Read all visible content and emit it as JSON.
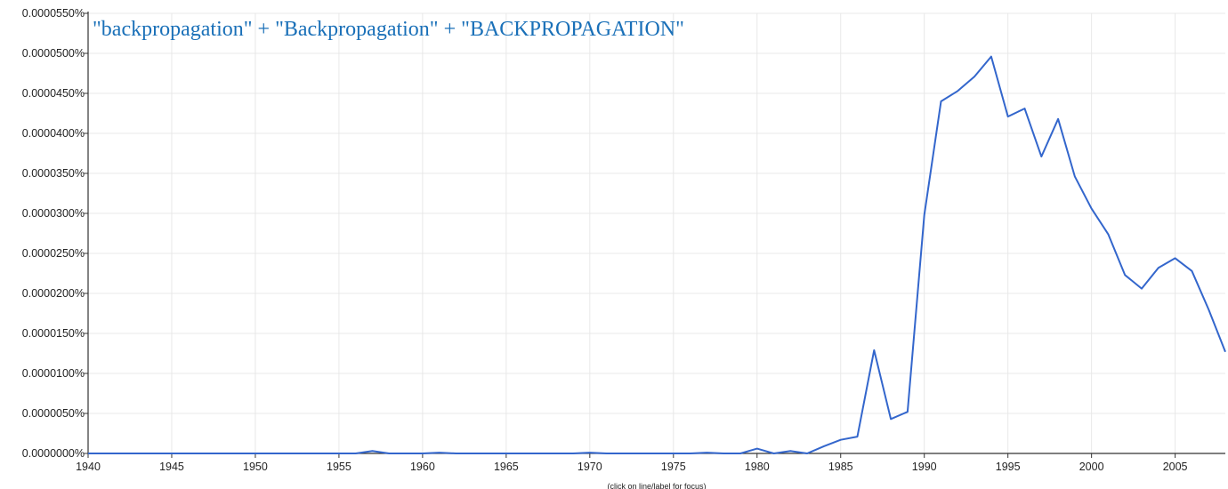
{
  "chart_data": {
    "type": "line",
    "title": "",
    "xlabel": "",
    "ylabel": "",
    "xlim": [
      1940,
      2008
    ],
    "ylim": [
      0,
      5.5e-05
    ],
    "x_ticks": [
      "1940",
      "1945",
      "1950",
      "1955",
      "1960",
      "1965",
      "1970",
      "1975",
      "1980",
      "1985",
      "1990",
      "1995",
      "2000",
      "2005"
    ],
    "y_ticks": [
      "0.0000000%",
      "0.0000050%",
      "0.0000100%",
      "0.0000150%",
      "0.0000200%",
      "0.0000250%",
      "0.0000300%",
      "0.0000350%",
      "0.0000400%",
      "0.0000450%",
      "0.0000500%",
      "0.0000550%"
    ],
    "grid": true,
    "series": [
      {
        "name": "\"backpropagation\" + \"Backpropagation\" + \"BACKPROPAGATION\"",
        "color": "#3366cc",
        "x": [
          1940,
          1941,
          1942,
          1943,
          1944,
          1945,
          1946,
          1947,
          1948,
          1949,
          1950,
          1951,
          1952,
          1953,
          1954,
          1955,
          1956,
          1957,
          1958,
          1959,
          1960,
          1961,
          1962,
          1963,
          1964,
          1965,
          1966,
          1967,
          1968,
          1969,
          1970,
          1971,
          1972,
          1973,
          1974,
          1975,
          1976,
          1977,
          1978,
          1979,
          1980,
          1981,
          1982,
          1983,
          1984,
          1985,
          1986,
          1987,
          1988,
          1989,
          1990,
          1991,
          1992,
          1993,
          1994,
          1995,
          1996,
          1997,
          1998,
          1999,
          2000,
          2001,
          2002,
          2003,
          2004,
          2005,
          2006,
          2007,
          2008
        ],
        "values": [
          0,
          0,
          0,
          0,
          0,
          0,
          0,
          0,
          0,
          0,
          0,
          0,
          0,
          0,
          0,
          0,
          0,
          3e-07,
          0,
          0,
          0,
          1e-07,
          0,
          0,
          0,
          0,
          0,
          0,
          0,
          0,
          1e-07,
          0,
          0,
          0,
          0,
          0,
          0,
          1e-07,
          0,
          0,
          6e-07,
          0,
          3e-07,
          0,
          9e-07,
          1.7e-06,
          2.1e-06,
          1.29e-05,
          4.3e-06,
          5.2e-06,
          2.98e-05,
          4.4e-05,
          4.53e-05,
          4.71e-05,
          4.96e-05,
          4.21e-05,
          4.31e-05,
          3.71e-05,
          4.18e-05,
          3.46e-05,
          3.06e-05,
          2.74e-05,
          2.23e-05,
          2.06e-05,
          2.32e-05,
          2.44e-05,
          2.28e-05,
          1.8e-05,
          1.27e-05
        ]
      }
    ]
  },
  "legend_label": "\"backpropagation\" + \"Backpropagation\" + \"BACKPROPAGATION\"",
  "hint_text": "(click on line/label for focus)"
}
